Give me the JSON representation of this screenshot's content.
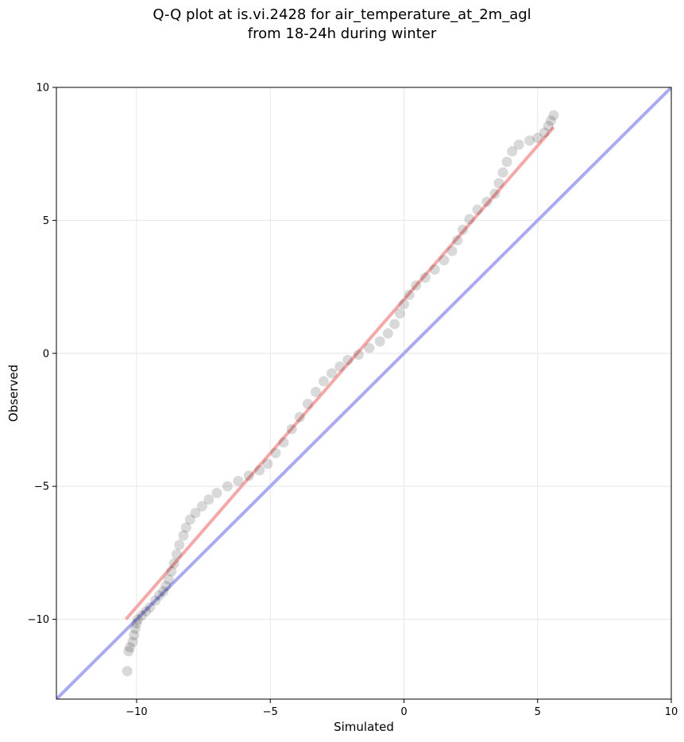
{
  "chart_data": {
    "type": "scatter",
    "title_line1": "Q-Q plot at is.vi.2428 for air_temperature_at_2m_agl",
    "title_line2": "from 18-24h during winter",
    "xlabel": "Simulated",
    "ylabel": "Observed",
    "xlim": [
      -13,
      10
    ],
    "ylim": [
      -13,
      10
    ],
    "xticks": [
      -10,
      -5,
      0,
      5,
      10
    ],
    "yticks": [
      -10,
      -5,
      0,
      5,
      10
    ],
    "xtick_labels": [
      "−10",
      "−5",
      "0",
      "5",
      "10"
    ],
    "ytick_labels": [
      "−10",
      "−5",
      "0",
      "5",
      "10"
    ],
    "grid": true,
    "reference_line": {
      "x": [
        -13,
        10
      ],
      "y": [
        -13,
        10
      ],
      "color": "#aaaaf2"
    },
    "fit_line": {
      "x": [
        -10.4,
        5.6
      ],
      "y": [
        -10.0,
        8.5
      ],
      "color": "#f4a8a8"
    },
    "point_color": "#000000",
    "points": [
      [
        -10.35,
        -11.95
      ],
      [
        -10.3,
        -11.2
      ],
      [
        -10.25,
        -11.05
      ],
      [
        -10.15,
        -10.85
      ],
      [
        -10.1,
        -10.6
      ],
      [
        -10.05,
        -10.35
      ],
      [
        -10.0,
        -10.15
      ],
      [
        -9.95,
        -10.0
      ],
      [
        -9.8,
        -9.85
      ],
      [
        -9.65,
        -9.7
      ],
      [
        -9.5,
        -9.55
      ],
      [
        -9.3,
        -9.3
      ],
      [
        -9.15,
        -9.1
      ],
      [
        -9.0,
        -8.95
      ],
      [
        -8.9,
        -8.75
      ],
      [
        -8.8,
        -8.5
      ],
      [
        -8.7,
        -8.2
      ],
      [
        -8.6,
        -7.9
      ],
      [
        -8.5,
        -7.55
      ],
      [
        -8.4,
        -7.2
      ],
      [
        -8.25,
        -6.85
      ],
      [
        -8.15,
        -6.55
      ],
      [
        -8.0,
        -6.25
      ],
      [
        -7.8,
        -6.0
      ],
      [
        -7.55,
        -5.75
      ],
      [
        -7.3,
        -5.5
      ],
      [
        -7.0,
        -5.25
      ],
      [
        -6.6,
        -5.0
      ],
      [
        -6.2,
        -4.8
      ],
      [
        -5.8,
        -4.6
      ],
      [
        -5.4,
        -4.4
      ],
      [
        -5.1,
        -4.15
      ],
      [
        -4.8,
        -3.75
      ],
      [
        -4.5,
        -3.35
      ],
      [
        -4.2,
        -2.85
      ],
      [
        -3.9,
        -2.4
      ],
      [
        -3.6,
        -1.9
      ],
      [
        -3.3,
        -1.45
      ],
      [
        -3.0,
        -1.05
      ],
      [
        -2.7,
        -0.75
      ],
      [
        -2.4,
        -0.5
      ],
      [
        -2.1,
        -0.25
      ],
      [
        -1.7,
        -0.05
      ],
      [
        -1.3,
        0.2
      ],
      [
        -0.9,
        0.45
      ],
      [
        -0.6,
        0.75
      ],
      [
        -0.35,
        1.1
      ],
      [
        -0.15,
        1.5
      ],
      [
        0.0,
        1.85
      ],
      [
        0.2,
        2.2
      ],
      [
        0.45,
        2.55
      ],
      [
        0.8,
        2.85
      ],
      [
        1.15,
        3.15
      ],
      [
        1.5,
        3.5
      ],
      [
        1.8,
        3.85
      ],
      [
        2.0,
        4.25
      ],
      [
        2.2,
        4.65
      ],
      [
        2.45,
        5.05
      ],
      [
        2.75,
        5.4
      ],
      [
        3.1,
        5.7
      ],
      [
        3.4,
        6.0
      ],
      [
        3.55,
        6.4
      ],
      [
        3.7,
        6.8
      ],
      [
        3.85,
        7.2
      ],
      [
        4.05,
        7.6
      ],
      [
        4.3,
        7.85
      ],
      [
        4.7,
        8.0
      ],
      [
        5.0,
        8.1
      ],
      [
        5.25,
        8.3
      ],
      [
        5.4,
        8.55
      ],
      [
        5.5,
        8.75
      ],
      [
        5.6,
        8.95
      ]
    ]
  }
}
